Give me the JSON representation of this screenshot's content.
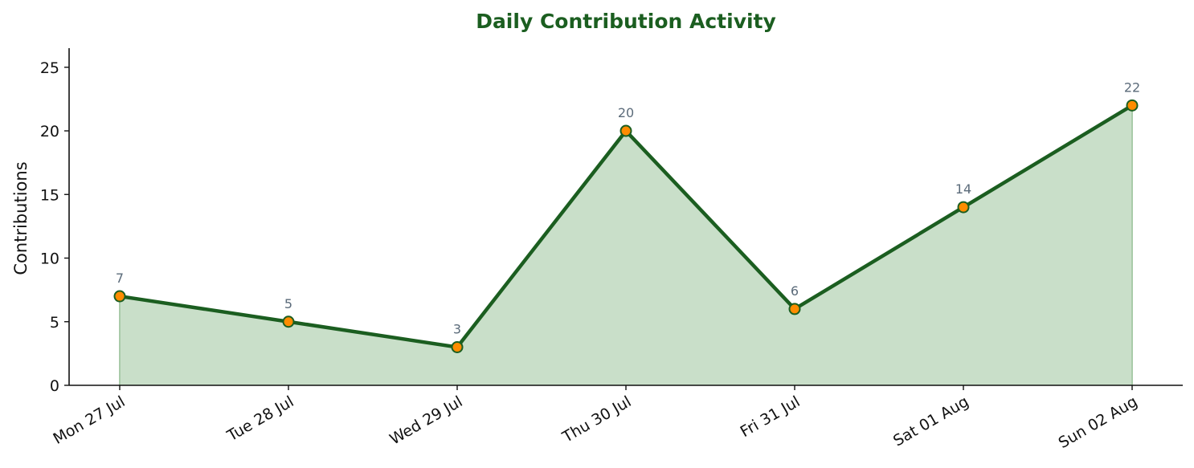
{
  "chart_data": {
    "type": "area",
    "title": "Daily Contribution Activity",
    "xlabel": "",
    "ylabel": "Contributions",
    "categories": [
      "Mon 27 Jul",
      "Tue 28 Jul",
      "Wed 29 Jul",
      "Thu 30 Jul",
      "Fri 31 Jul",
      "Sat 01 Aug",
      "Sun 02 Aug"
    ],
    "series": [
      {
        "values": [
          7,
          5,
          3,
          20,
          6,
          14,
          22
        ]
      }
    ],
    "ylim": [
      0,
      26.5
    ],
    "yticks": [
      0,
      5,
      10,
      15,
      20,
      25
    ],
    "data_labels": [
      "7",
      "5",
      "3",
      "20",
      "6",
      "14",
      "22"
    ],
    "grid": false,
    "legend": "none",
    "colors": {
      "title": "#1b5e20",
      "line": "#1b5e20",
      "fill": "#c9dfc9",
      "marker_fill": "#ff8c00",
      "marker_edge": "#1b5e20",
      "data_label": "#5b6b7a",
      "axis": "#111111"
    }
  }
}
